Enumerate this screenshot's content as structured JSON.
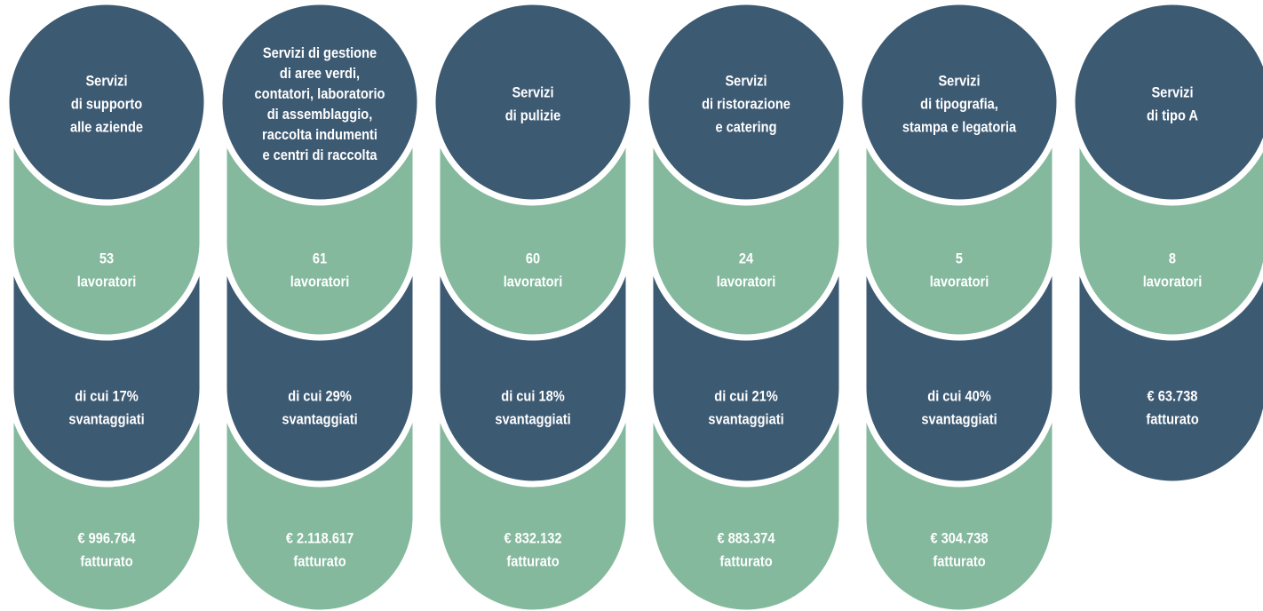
{
  "columns": [
    {
      "title": [
        "Servizi",
        "di supporto",
        "alle aziende"
      ],
      "workers": [
        "53",
        "lavoratori"
      ],
      "disadvantaged": [
        "di cui 17%",
        "svantaggiati"
      ],
      "revenue": [
        "€ 996.764",
        "fatturato"
      ]
    },
    {
      "title": [
        "Servizi di gestione",
        "di aree verdi,",
        "contatori, laboratorio",
        "di assemblaggio,",
        "raccolta indumenti",
        "e centri di raccolta"
      ],
      "workers": [
        "61",
        "lavoratori"
      ],
      "disadvantaged": [
        "di cui 29%",
        "svantaggiati"
      ],
      "revenue": [
        "€ 2.118.617",
        "fatturato"
      ]
    },
    {
      "title": [
        "Servizi",
        "di pulizie"
      ],
      "workers": [
        "60",
        "lavoratori"
      ],
      "disadvantaged": [
        "di cui 18%",
        "svantaggiati"
      ],
      "revenue": [
        "€ 832.132",
        "fatturato"
      ]
    },
    {
      "title": [
        "Servizi",
        "di ristorazione",
        "e catering"
      ],
      "workers": [
        "24",
        "lavoratori"
      ],
      "disadvantaged": [
        "di cui 21%",
        "svantaggiati"
      ],
      "revenue": [
        "€ 883.374",
        "fatturato"
      ]
    },
    {
      "title": [
        "Servizi",
        "di tipografia,",
        "stampa e legatoria"
      ],
      "workers": [
        "5",
        "lavoratori"
      ],
      "disadvantaged": [
        "di cui 40%",
        "svantaggiati"
      ],
      "revenue": [
        "€ 304.738",
        "fatturato"
      ]
    },
    {
      "title": [
        "Servizi",
        "di tipo A"
      ],
      "workers": [
        "8",
        "lavoratori"
      ],
      "revenue": [
        "€ 63.738",
        "fatturato"
      ]
    }
  ]
}
